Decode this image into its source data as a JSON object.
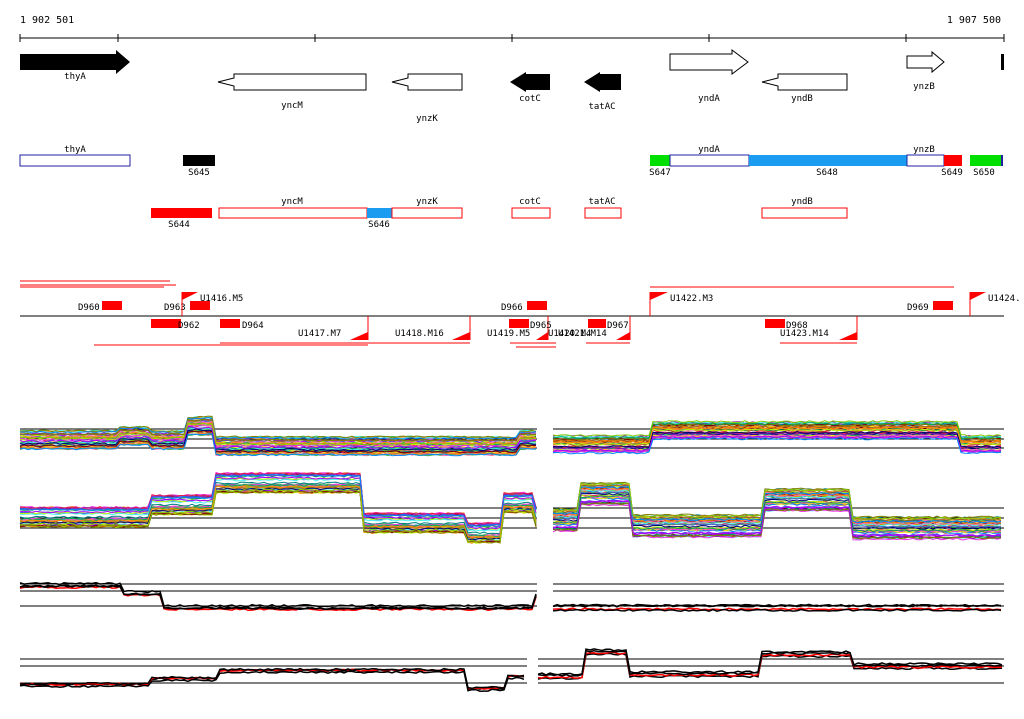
{
  "ruler": {
    "start_label": "1 902 501",
    "end_label": "1 907 500"
  },
  "genes": [
    {
      "name": "thyA",
      "strand": "+",
      "filled": true,
      "start_bp": 1902501,
      "end_bp": 1903060
    },
    {
      "name": "yncM",
      "strand": "-",
      "filled": false,
      "start_bp": 1903520,
      "end_bp": 1904260
    },
    {
      "name": "ynzK",
      "strand": "-",
      "filled": false,
      "start_bp": 1904380,
      "end_bp": 1904740
    },
    {
      "name": "cotC",
      "strand": "-",
      "filled": true,
      "start_bp": 1904950,
      "end_bp": 1905150
    },
    {
      "name": "tatAC",
      "strand": "-",
      "filled": true,
      "start_bp": 1905320,
      "end_bp": 1905510
    },
    {
      "name": "yndA",
      "strand": "+",
      "filled": false,
      "start_bp": 1905640,
      "end_bp": 1906040
    },
    {
      "name": "yndB",
      "strand": "-",
      "filled": false,
      "start_bp": 1906200,
      "end_bp": 1906630
    },
    {
      "name": "ynzB",
      "strand": "+",
      "filled": false,
      "start_bp": 1906970,
      "end_bp": 1907160
    }
  ],
  "forward_segments": {
    "gene_labels": [
      "thyA",
      "yndA",
      "ynzB"
    ],
    "segment_labels": [
      "S645",
      "S647",
      "S648",
      "S649",
      "S650"
    ]
  },
  "reverse_segments": {
    "gene_labels": [
      "yncM",
      "ynzK",
      "cotC",
      "tatAC",
      "yndB"
    ],
    "segment_labels": [
      "S644",
      "S646"
    ]
  },
  "features": {
    "above": [
      "D960",
      "D963",
      "U1416.M5",
      "D966",
      "U1422.M3",
      "D969",
      "U1424."
    ],
    "below": [
      "D962",
      "D964",
      "U1417.M7",
      "U1418.M16",
      "U1419.M5",
      "D965",
      "U1421.M14",
      "D967",
      "D968",
      "U1423.M14"
    ],
    "overlap_note": "U1420.M4"
  },
  "colors": {
    "gene_fill": "#000000",
    "gene_outline_fwd": "#2020a0",
    "segment_red": "#ff0000",
    "segment_blue": "#1a9cf0",
    "segment_green": "#00e000",
    "feature_red": "#ff0000",
    "track_black": "#000000",
    "track_red": "#ff0000"
  },
  "expression_panels": [
    {
      "id": "panel-1",
      "series_count": 40
    },
    {
      "id": "panel-2",
      "series_count": 40
    },
    {
      "id": "panel-3",
      "series_count": 4
    },
    {
      "id": "panel-4",
      "series_count": 4
    }
  ]
}
